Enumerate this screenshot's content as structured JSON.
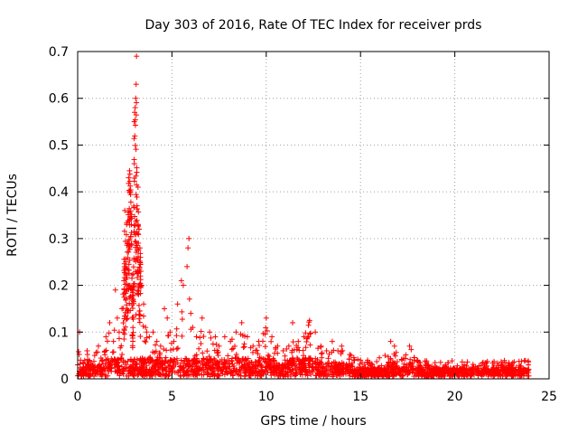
{
  "chart_data": {
    "type": "scatter",
    "title": "Day 303 of 2016, Rate Of TEC Index for receiver prds",
    "xlabel": "GPS time / hours",
    "ylabel": "ROTI / TECUs",
    "xlim": [
      0,
      25
    ],
    "ylim": [
      0,
      0.7
    ],
    "xticks": [
      0,
      5,
      10,
      15,
      20,
      25
    ],
    "xtick_labels": [
      "0",
      "5",
      "10",
      "15",
      "20",
      "25"
    ],
    "yticks": [
      0,
      0.1,
      0.2,
      0.3,
      0.4,
      0.5,
      0.6,
      0.7
    ],
    "ytick_labels": [
      "0",
      "0.1",
      "0.2",
      "0.3",
      "0.4",
      "0.5",
      "0.6",
      "0.7"
    ],
    "grid": true,
    "marker": "plus",
    "color": "#ff0000",
    "series": [
      {
        "name": "ROTI",
        "points": [
          [
            0.0,
            0.03
          ],
          [
            0.05,
            0.058
          ],
          [
            0.1,
            0.1
          ],
          [
            0.15,
            0.04
          ],
          [
            0.2,
            0.02
          ],
          [
            0.3,
            0.035
          ],
          [
            0.5,
            0.06
          ],
          [
            0.7,
            0.03
          ],
          [
            0.9,
            0.05
          ],
          [
            1.1,
            0.07
          ],
          [
            1.3,
            0.04
          ],
          [
            1.5,
            0.09
          ],
          [
            1.7,
            0.12
          ],
          [
            1.9,
            0.08
          ],
          [
            2.0,
            0.19
          ],
          [
            2.1,
            0.13
          ],
          [
            2.2,
            0.1
          ],
          [
            2.35,
            0.15
          ],
          [
            2.45,
            0.21
          ],
          [
            2.5,
            0.36
          ],
          [
            2.55,
            0.25
          ],
          [
            2.6,
            0.33
          ],
          [
            2.65,
            0.29
          ],
          [
            2.7,
            0.43
          ],
          [
            2.75,
            0.445
          ],
          [
            2.8,
            0.4
          ],
          [
            2.85,
            0.33
          ],
          [
            2.9,
            0.19
          ],
          [
            2.95,
            0.17
          ],
          [
            3.0,
            0.55
          ],
          [
            3.02,
            0.57
          ],
          [
            3.05,
            0.58
          ],
          [
            3.08,
            0.6
          ],
          [
            3.1,
            0.63
          ],
          [
            3.12,
            0.69
          ],
          [
            3.15,
            0.37
          ],
          [
            3.2,
            0.41
          ],
          [
            3.25,
            0.32
          ],
          [
            3.3,
            0.28
          ],
          [
            3.35,
            0.23
          ],
          [
            3.4,
            0.2
          ],
          [
            3.5,
            0.16
          ],
          [
            3.6,
            0.11
          ],
          [
            3.8,
            0.09
          ],
          [
            4.0,
            0.1
          ],
          [
            4.2,
            0.08
          ],
          [
            4.4,
            0.07
          ],
          [
            4.6,
            0.15
          ],
          [
            4.75,
            0.13
          ],
          [
            4.9,
            0.1
          ],
          [
            5.1,
            0.08
          ],
          [
            5.3,
            0.16
          ],
          [
            5.5,
            0.21
          ],
          [
            5.6,
            0.2
          ],
          [
            5.8,
            0.24
          ],
          [
            5.85,
            0.28
          ],
          [
            5.9,
            0.3
          ],
          [
            6.0,
            0.14
          ],
          [
            6.1,
            0.11
          ],
          [
            6.3,
            0.09
          ],
          [
            6.6,
            0.13
          ],
          [
            7.0,
            0.1
          ],
          [
            7.3,
            0.09
          ],
          [
            7.5,
            0.07
          ],
          [
            7.8,
            0.09
          ],
          [
            8.1,
            0.08
          ],
          [
            8.4,
            0.1
          ],
          [
            8.7,
            0.12
          ],
          [
            9.0,
            0.09
          ],
          [
            9.3,
            0.07
          ],
          [
            9.6,
            0.08
          ],
          [
            10.0,
            0.13
          ],
          [
            10.3,
            0.09
          ],
          [
            10.6,
            0.07
          ],
          [
            10.9,
            0.06
          ],
          [
            11.2,
            0.07
          ],
          [
            11.4,
            0.12
          ],
          [
            11.7,
            0.08
          ],
          [
            12.0,
            0.09
          ],
          [
            12.3,
            0.125
          ],
          [
            12.6,
            0.1
          ],
          [
            12.9,
            0.07
          ],
          [
            13.2,
            0.06
          ],
          [
            13.5,
            0.08
          ],
          [
            13.8,
            0.06
          ],
          [
            14.0,
            0.07
          ],
          [
            14.5,
            0.05
          ],
          [
            15.0,
            0.04
          ],
          [
            15.5,
            0.035
          ],
          [
            16.0,
            0.045
          ],
          [
            16.3,
            0.05
          ],
          [
            16.6,
            0.08
          ],
          [
            16.8,
            0.07
          ],
          [
            17.2,
            0.04
          ],
          [
            17.6,
            0.07
          ],
          [
            18.0,
            0.04
          ],
          [
            18.5,
            0.035
          ],
          [
            19.0,
            0.025
          ],
          [
            19.5,
            0.03
          ],
          [
            20.0,
            0.02
          ],
          [
            20.5,
            0.03
          ],
          [
            21.0,
            0.025
          ],
          [
            21.5,
            0.035
          ],
          [
            22.0,
            0.02
          ],
          [
            22.5,
            0.03
          ],
          [
            23.0,
            0.025
          ],
          [
            23.5,
            0.02
          ],
          [
            23.9,
            0.03
          ]
        ]
      }
    ]
  }
}
